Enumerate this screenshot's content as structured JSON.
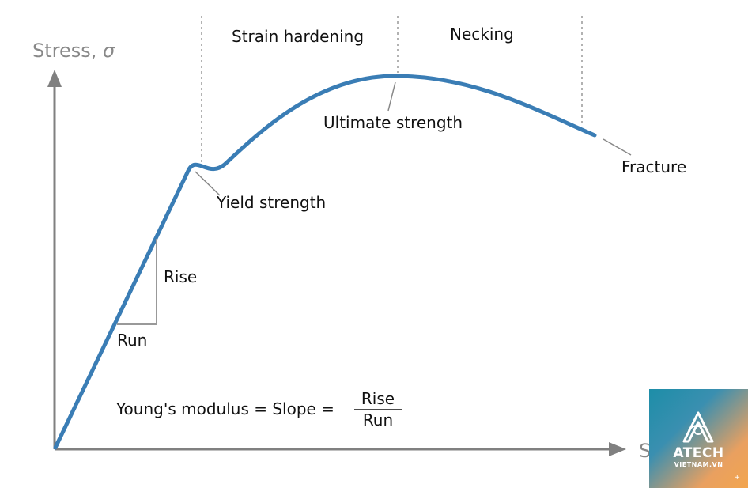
{
  "axes": {
    "y_label": "Stress, ",
    "y_symbol": "σ",
    "x_label_visible": "Stra"
  },
  "regions": {
    "strain_hardening": "Strain hardening",
    "necking": "Necking"
  },
  "annotations": {
    "ultimate_strength": "Ultimate strength",
    "yield_strength": "Yield strength",
    "fracture": "Fracture",
    "rise": "Rise",
    "run": "Run"
  },
  "formula": {
    "lhs": "Young's modulus = Slope = ",
    "numerator": "Rise",
    "denominator": "Run"
  },
  "colors": {
    "curve": "#3a7db5",
    "axis": "#808080",
    "dashed": "#888888"
  },
  "logo": {
    "name": "ATECH",
    "sub": "VIETNAM.VN",
    "plus": "+"
  }
}
